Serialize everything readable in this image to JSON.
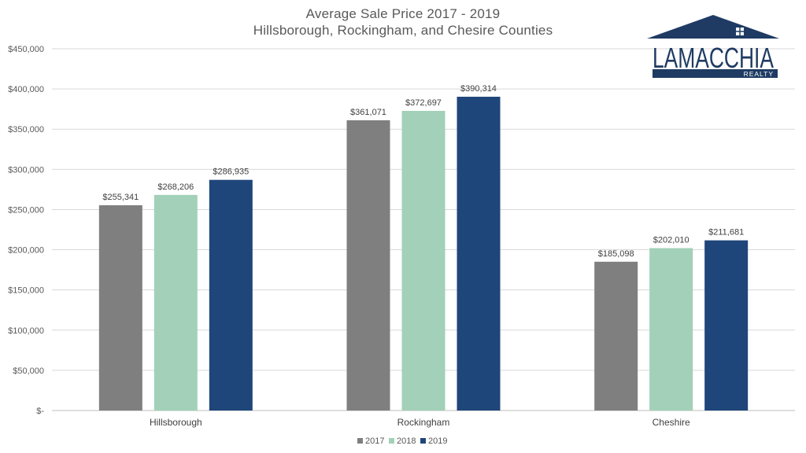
{
  "chart_data": {
    "type": "bar",
    "title": "Average Sale Price 2017 - 2019",
    "subtitle": "Hillsborough, Rockingham, and Chesire Counties",
    "categories": [
      "Hillsborough",
      "Rockingham",
      "Cheshire"
    ],
    "series": [
      {
        "name": "2017",
        "color": "#7f7f7f",
        "values": [
          255341,
          361071,
          185098
        ]
      },
      {
        "name": "2018",
        "color": "#a2d0b8",
        "values": [
          268206,
          372697,
          202010
        ]
      },
      {
        "name": "2019",
        "color": "#1f467a",
        "values": [
          286935,
          390314,
          211681
        ]
      }
    ],
    "data_labels": [
      [
        "$255,341",
        "$361,071",
        "$185,098"
      ],
      [
        "$268,206",
        "$372,697",
        "$202,010"
      ],
      [
        "$286,935",
        "$390,314",
        "$211,681"
      ]
    ],
    "ylim": [
      0,
      450000
    ],
    "yticks": [
      0,
      50000,
      100000,
      150000,
      200000,
      250000,
      300000,
      350000,
      400000,
      450000
    ],
    "ytick_labels": [
      "$-",
      "$50,000",
      "$100,000",
      "$150,000",
      "$200,000",
      "$250,000",
      "$300,000",
      "$350,000",
      "$400,000",
      "$450,000"
    ],
    "xlabel": "",
    "ylabel": "",
    "grid": true,
    "legend_position": "bottom"
  },
  "logo": {
    "name": "LAMACCHIA",
    "tagline": "REALTY",
    "color": "#1f3b63"
  }
}
